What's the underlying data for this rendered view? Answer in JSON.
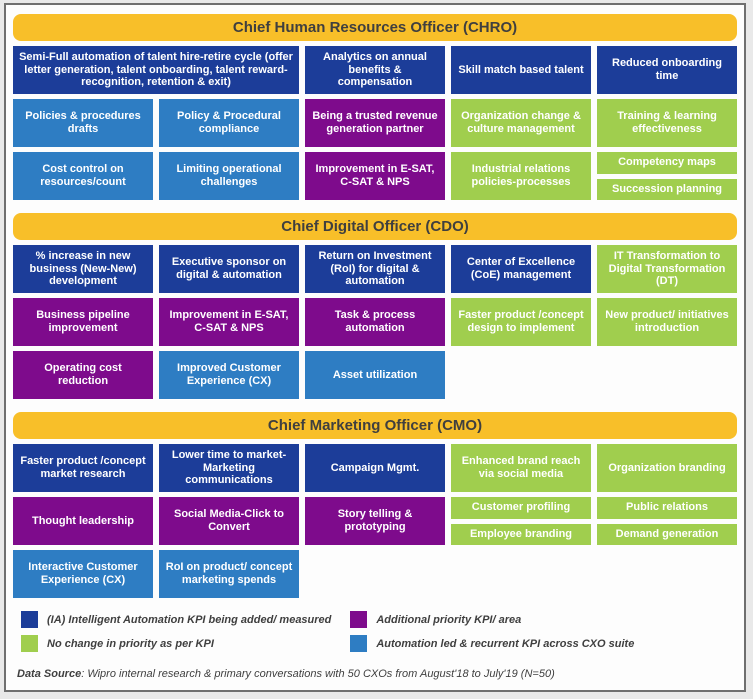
{
  "colors": {
    "gold_header": "#F8BF29",
    "dark_blue": "#1C3D99",
    "light_blue": "#2E7DC3",
    "purple": "#7E0B8C",
    "green": "#A0CE4E",
    "header_text": "#3F3F3F",
    "box_text": "#FFFFFF"
  },
  "sections": [
    {
      "title": "Chief Human Resources Officer (CHRO)",
      "rows": [
        {
          "cells": [
            {
              "text": "Semi-Full automation of talent hire-retire cycle (offer letter generation, talent onboarding, talent reward-recognition, retention & exit)",
              "category": "intelligent-automation-kpi",
              "span": 2
            },
            {
              "text": "Analytics on annual benefits & compensation",
              "category": "intelligent-automation-kpi"
            },
            {
              "text": "Skill match based talent",
              "category": "intelligent-automation-kpi"
            },
            {
              "text": "Reduced onboarding time",
              "category": "intelligent-automation-kpi"
            }
          ]
        },
        {
          "cells": [
            {
              "text": "Policies & procedures drafts",
              "category": "automation-led-recurrent-kpi"
            },
            {
              "text": "Policy & Procedural compliance",
              "category": "automation-led-recurrent-kpi"
            },
            {
              "text": "Being a trusted revenue generation partner",
              "category": "additional-priority-kpi"
            },
            {
              "text": "Organization change & culture management",
              "category": "no-change-kpi"
            },
            {
              "text": "Training & learning effectiveness",
              "category": "no-change-kpi"
            }
          ]
        },
        {
          "cells": [
            {
              "text": "Cost control on resources/count",
              "category": "automation-led-recurrent-kpi"
            },
            {
              "text": "Limiting operational challenges",
              "category": "automation-led-recurrent-kpi"
            },
            {
              "text": "Improvement in E-SAT, C-SAT & NPS",
              "category": "additional-priority-kpi"
            },
            {
              "text": "Industrial relations policies-processes",
              "category": "no-change-kpi"
            },
            {
              "stack": [
                {
                  "text": "Competency maps",
                  "category": "no-change-kpi"
                },
                {
                  "text": "Succession planning",
                  "category": "no-change-kpi"
                }
              ]
            }
          ]
        }
      ]
    },
    {
      "title": "Chief Digital Officer (CDO)",
      "rows": [
        {
          "cells": [
            {
              "text": "% increase in new business (New-New) development",
              "category": "intelligent-automation-kpi"
            },
            {
              "text": "Executive sponsor on digital & automation",
              "category": "intelligent-automation-kpi"
            },
            {
              "text": "Return on Investment (RoI) for digital & automation",
              "category": "intelligent-automation-kpi"
            },
            {
              "text": "Center of Excellence (CoE) management",
              "category": "intelligent-automation-kpi"
            },
            {
              "text": "IT Transformation to Digital Transformation (DT)",
              "category": "no-change-kpi"
            }
          ]
        },
        {
          "cells": [
            {
              "text": "Business pipeline improvement",
              "category": "additional-priority-kpi"
            },
            {
              "text": "Improvement in E-SAT, C-SAT & NPS",
              "category": "additional-priority-kpi"
            },
            {
              "text": "Task & process automation",
              "category": "additional-priority-kpi"
            },
            {
              "text": "Faster product /concept design to implement",
              "category": "no-change-kpi"
            },
            {
              "text": "New product/ initiatives introduction",
              "category": "no-change-kpi"
            }
          ]
        },
        {
          "cells": [
            {
              "text": "Operating cost reduction",
              "category": "additional-priority-kpi"
            },
            {
              "text": "Improved Customer Experience (CX)",
              "category": "automation-led-recurrent-kpi"
            },
            {
              "text": "Asset utilization",
              "category": "automation-led-recurrent-kpi"
            }
          ]
        }
      ]
    },
    {
      "title": "Chief Marketing Officer (CMO)",
      "rows": [
        {
          "cells": [
            {
              "text": "Faster product /concept market research",
              "category": "intelligent-automation-kpi"
            },
            {
              "text": "Lower time to market-Marketing communications",
              "category": "intelligent-automation-kpi"
            },
            {
              "text": "Campaign Mgmt.",
              "category": "intelligent-automation-kpi"
            },
            {
              "text": "Enhanced brand reach via social media",
              "category": "no-change-kpi"
            },
            {
              "text": "Organization branding",
              "category": "no-change-kpi"
            }
          ]
        },
        {
          "cells": [
            {
              "text": "Thought leadership",
              "category": "additional-priority-kpi"
            },
            {
              "text": "Social Media-Click to Convert",
              "category": "additional-priority-kpi"
            },
            {
              "text": "Story telling & prototyping",
              "category": "additional-priority-kpi"
            },
            {
              "stack": [
                {
                  "text": "Customer profiling",
                  "category": "no-change-kpi"
                },
                {
                  "text": "Employee branding",
                  "category": "no-change-kpi"
                }
              ]
            },
            {
              "stack": [
                {
                  "text": "Public relations",
                  "category": "no-change-kpi"
                },
                {
                  "text": "Demand generation",
                  "category": "no-change-kpi"
                }
              ]
            }
          ]
        },
        {
          "cells": [
            {
              "text": "Interactive Customer Experience (CX)",
              "category": "automation-led-recurrent-kpi"
            },
            {
              "text": "RoI on product/ concept marketing spends",
              "category": "automation-led-recurrent-kpi"
            }
          ]
        }
      ]
    }
  ],
  "legend": {
    "items": [
      {
        "label": "(IA) Intelligent Automation KPI being added/ measured",
        "color": "#1C3D99"
      },
      {
        "label": "Additional priority KPI/ area",
        "color": "#7E0B8C"
      },
      {
        "label": "No change in priority as per KPI",
        "color": "#A0CE4E"
      },
      {
        "label": "Automation led & recurrent KPI across CXO suite",
        "color": "#2E7DC3"
      }
    ]
  },
  "footer": {
    "label": "Data Source",
    "text": ": Wipro internal research & primary conversations with 50 CXOs from August'18 to July'19 (N=50)"
  }
}
